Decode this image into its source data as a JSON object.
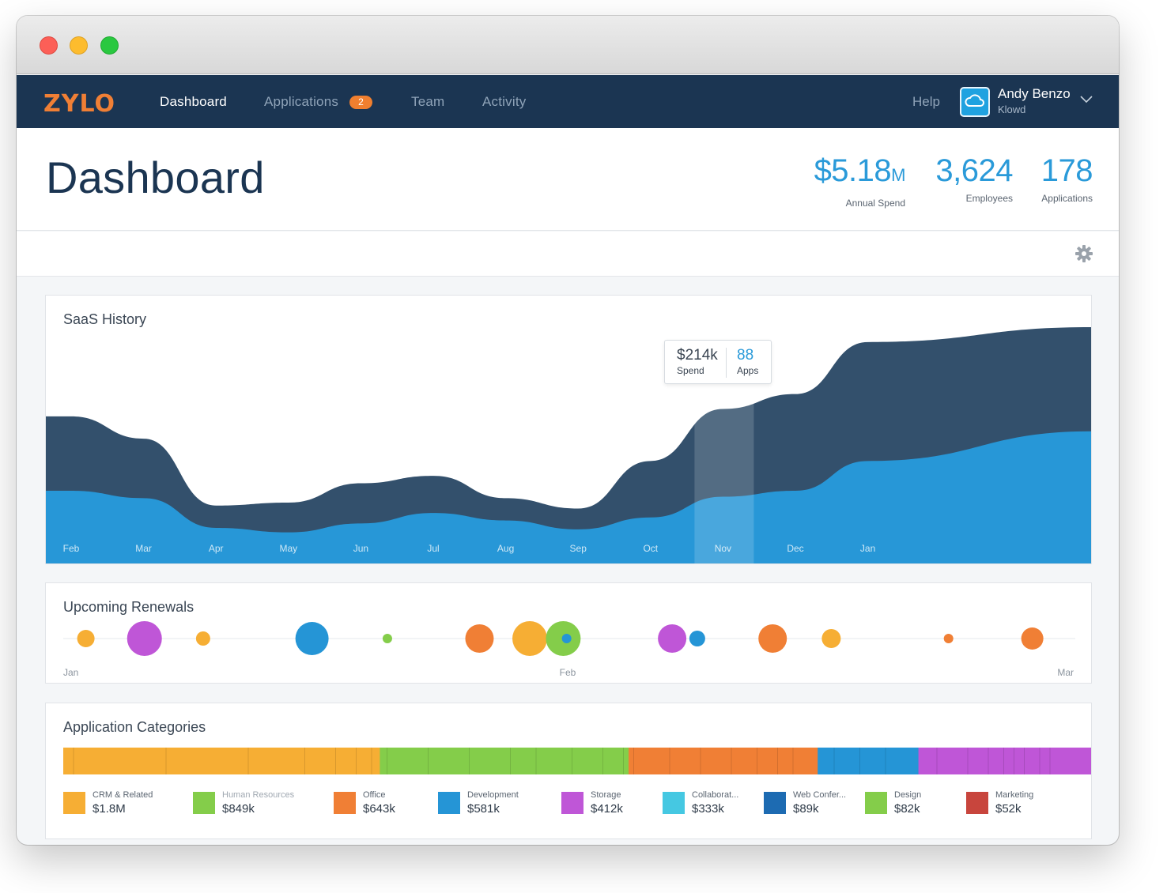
{
  "nav": {
    "logo_text": "ZYLO",
    "links": [
      {
        "label": "Dashboard"
      },
      {
        "label": "Applications",
        "badge": "2"
      },
      {
        "label": "Team"
      },
      {
        "label": "Activity"
      }
    ],
    "help": "Help",
    "user": {
      "name": "Andy Benzo",
      "org": "Klowd"
    }
  },
  "header": {
    "title": "Dashboard",
    "stats": [
      {
        "value": "$5.18",
        "unit": "M",
        "label": "Annual Spend"
      },
      {
        "value": "3,624",
        "unit": "",
        "label": "Employees"
      },
      {
        "value": "178",
        "unit": "",
        "label": "Applications"
      }
    ]
  },
  "colors": {
    "navy": "#1b3552",
    "accent": "#2a9ad9",
    "area_back": "#33506c",
    "area_front": "#2797d7"
  },
  "saas_history": {
    "title": "SaaS History",
    "tooltip": {
      "spend_value": "$214k",
      "spend_label": "Spend",
      "apps_value": "88",
      "apps_label": "Apps"
    },
    "chart_data": {
      "type": "area",
      "title": "SaaS History",
      "categories": [
        "Feb",
        "Mar",
        "Apr",
        "May",
        "Jun",
        "Jul",
        "Aug",
        "Sep",
        "Oct",
        "Nov",
        "Dec",
        "Jan"
      ],
      "highlight": "Nov",
      "series": [
        {
          "name": "Apps",
          "values": [
            100,
            85,
            40,
            42,
            55,
            60,
            45,
            38,
            70,
            105,
            115,
            150
          ]
        },
        {
          "name": "Spend",
          "values": [
            50,
            45,
            25,
            22,
            28,
            35,
            30,
            24,
            32,
            46,
            50,
            70
          ]
        }
      ]
    }
  },
  "upcoming_renewals": {
    "title": "Upcoming Renewals",
    "axis_labels": [
      "Jan",
      "Feb",
      "Mar"
    ],
    "chart_data": {
      "type": "scatter",
      "title": "Upcoming Renewals",
      "x_range_days": [
        0,
        59
      ],
      "points": [
        {
          "day": 0.5,
          "size": 11,
          "color": "#f6ae34"
        },
        {
          "day": 4,
          "size": 22,
          "color": "#bf56d7"
        },
        {
          "day": 7.5,
          "size": 9,
          "color": "#f6ae34"
        },
        {
          "day": 14,
          "size": 21,
          "color": "#2595d6"
        },
        {
          "day": 18.5,
          "size": 6,
          "color": "#84cd4a"
        },
        {
          "day": 24,
          "size": 18,
          "color": "#f07f35"
        },
        {
          "day": 27,
          "size": 22,
          "color": "#f6ae34"
        },
        {
          "day": 29,
          "size": 22,
          "color": "#84cd4a"
        },
        {
          "day": 29.2,
          "size": 6,
          "color": "#2595d6"
        },
        {
          "day": 35.5,
          "size": 18,
          "color": "#bf56d7"
        },
        {
          "day": 37,
          "size": 10,
          "color": "#2595d6"
        },
        {
          "day": 41.5,
          "size": 18,
          "color": "#f07f35"
        },
        {
          "day": 45,
          "size": 12,
          "color": "#f6ae34"
        },
        {
          "day": 52,
          "size": 6,
          "color": "#f07f35"
        },
        {
          "day": 57,
          "size": 14,
          "color": "#f07f35"
        }
      ]
    }
  },
  "application_categories": {
    "title": "Application Categories",
    "chart_data": {
      "type": "bar",
      "title": "Application Categories",
      "orientation": "stacked-horizontal",
      "categories": [
        "CRM & Related",
        "Human Resources",
        "Office",
        "Development",
        "Storage",
        "Collaborat...",
        "Web Confer...",
        "Design",
        "Marketing"
      ],
      "values": [
        1800,
        849,
        643,
        581,
        412,
        333,
        89,
        82,
        52
      ],
      "value_labels": [
        "$1.8M",
        "$849k",
        "$643k",
        "$581k",
        "$412k",
        "$333k",
        "$89k",
        "$82k",
        "$52k"
      ],
      "colors": [
        "#f6ae34",
        "#84cd4a",
        "#f07f35",
        "#2595d6",
        "#bf56d7",
        "#45c8e2",
        "#1d6bb2",
        "#84cd4a",
        "#c8453d"
      ],
      "bar_segments": [
        {
          "color": "#f6ae34",
          "share": 30.8,
          "subdivisions": [
            1,
            10,
            18,
            23.5,
            26.5,
            28.5,
            30
          ]
        },
        {
          "color": "#84cd4a",
          "share": 24.2,
          "subdivisions": [
            31.5,
            35.5,
            39.5,
            43.5,
            46,
            49.5,
            52.5,
            54.5
          ]
        },
        {
          "color": "#f07f35",
          "share": 18.4,
          "subdivisions": [
            55.5,
            59,
            62,
            65,
            67.5,
            69.5,
            71
          ]
        },
        {
          "color": "#2595d6",
          "share": 9.8,
          "subdivisions": [
            75,
            77.5,
            80
          ]
        },
        {
          "color": "#bf56d7",
          "share": 16.8,
          "subdivisions": [
            85,
            88,
            90,
            91.5,
            92.5,
            93.5,
            95,
            96
          ]
        }
      ]
    }
  }
}
